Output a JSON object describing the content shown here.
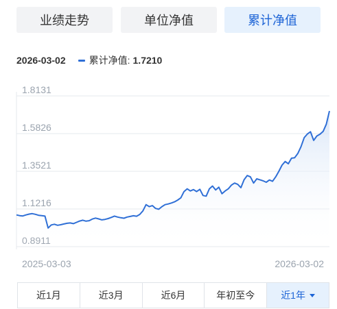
{
  "tabs": [
    {
      "label": "业绩走势",
      "active": false
    },
    {
      "label": "单位净值",
      "active": false
    },
    {
      "label": "累计净值",
      "active": true
    }
  ],
  "legend": {
    "date": "2026-03-02",
    "series_label": "累计净值:",
    "series_value": "1.7210"
  },
  "ranges": [
    {
      "label": "近1月",
      "active": false
    },
    {
      "label": "近3月",
      "active": false
    },
    {
      "label": "近6月",
      "active": false
    },
    {
      "label": "年初至今",
      "active": false
    },
    {
      "label": "近1年",
      "active": true
    }
  ],
  "colors": {
    "line": "#2f6fd6",
    "area_top": "#d6e4f7",
    "grid": "#e6e9ee",
    "axis_text": "#9aa3ae"
  },
  "chart_data": {
    "type": "area",
    "title": "",
    "xlabel": "",
    "ylabel": "",
    "ylim": [
      0.8911,
      1.8131
    ],
    "yticks": [
      "1.8131",
      "1.5826",
      "1.3521",
      "1.1216",
      "0.8911"
    ],
    "xticks": [
      "2025-03-03",
      "2026-03-02"
    ],
    "grid": true,
    "x_range": [
      "2025-03-03",
      "2026-03-02"
    ],
    "series": [
      {
        "values": [
          1.085,
          1.081,
          1.079,
          1.085,
          1.09,
          1.093,
          1.089,
          1.083,
          1.081,
          1.078,
          1.005,
          1.024,
          1.028,
          1.022,
          1.025,
          1.03,
          1.034,
          1.036,
          1.032,
          1.04,
          1.048,
          1.053,
          1.047,
          1.05,
          1.06,
          1.066,
          1.061,
          1.055,
          1.058,
          1.063,
          1.07,
          1.078,
          1.072,
          1.068,
          1.065,
          1.072,
          1.076,
          1.08,
          1.077,
          1.088,
          1.11,
          1.148,
          1.136,
          1.142,
          1.125,
          1.12,
          1.136,
          1.148,
          1.152,
          1.158,
          1.165,
          1.176,
          1.19,
          1.228,
          1.245,
          1.232,
          1.24,
          1.228,
          1.242,
          1.204,
          1.2,
          1.245,
          1.262,
          1.238,
          1.255,
          1.215,
          1.232,
          1.245,
          1.268,
          1.28,
          1.272,
          1.252,
          1.3,
          1.326,
          1.318,
          1.28,
          1.306,
          1.3,
          1.294,
          1.285,
          1.299,
          1.291,
          1.318,
          1.352,
          1.39,
          1.412,
          1.398,
          1.432,
          1.435,
          1.461,
          1.502,
          1.558,
          1.58,
          1.594,
          1.541,
          1.568,
          1.579,
          1.596,
          1.64,
          1.721
        ]
      }
    ]
  }
}
